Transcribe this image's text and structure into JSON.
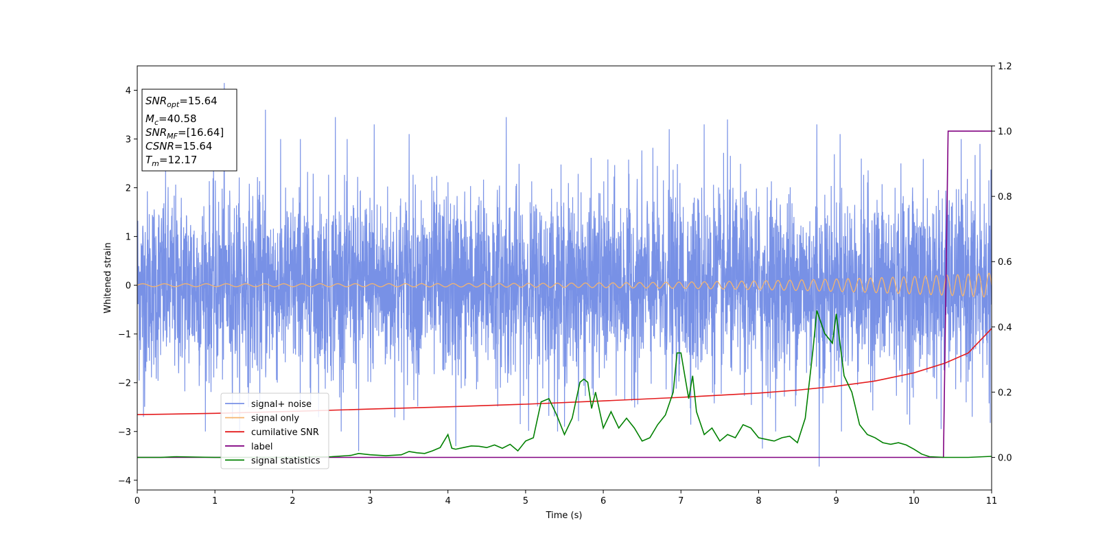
{
  "chart_data": {
    "type": "line",
    "xlabel": "Time (s)",
    "ylabel": "Whitened strain",
    "xlim": [
      0,
      11
    ],
    "ylim": [
      -4.2,
      4.5
    ],
    "y2lim": [
      -0.1,
      1.2
    ],
    "x_ticks": [
      "0",
      "1",
      "2",
      "3",
      "4",
      "5",
      "6",
      "7",
      "8",
      "9",
      "10",
      "11"
    ],
    "y_ticks": [
      "−4",
      "−3",
      "−2",
      "−1",
      "0",
      "1",
      "2",
      "3",
      "4"
    ],
    "y2_ticks": [
      "0.0",
      "0.2",
      "0.4",
      "0.6",
      "0.8",
      "1.0",
      "1.2"
    ],
    "grid": false,
    "legend_placement": "lower-left",
    "annotation": {
      "snr_opt": {
        "sym": "SNR",
        "sub": "opt",
        "val": "=15.64"
      },
      "mc": {
        "sym": "M",
        "sub": "c",
        "val": "=40.58"
      },
      "snr_mf": {
        "sym": "SNR",
        "sub": "MF",
        "val": "=[16.64]"
      },
      "csnr": {
        "sym": "CSNR",
        "sub": "",
        "val": "=15.64"
      },
      "tm": {
        "sym": "T",
        "sub": "m",
        "val": "=12.17"
      }
    },
    "series": [
      {
        "name": "signal+ noise",
        "axis": "left",
        "color": "#7891e6",
        "description": "noise-like band",
        "typical_range": [
          -1.6,
          1.6
        ],
        "peaks": [
          {
            "x": 1.12,
            "y": 4.15
          },
          {
            "x": 1.65,
            "y": 3.6
          },
          {
            "x": 2.55,
            "y": 3.45
          },
          {
            "x": 2.1,
            "y": 3.0
          },
          {
            "x": 3.05,
            "y": 3.3
          },
          {
            "x": 3.5,
            "y": 3.1
          },
          {
            "x": 4.75,
            "y": 3.45
          },
          {
            "x": 6.85,
            "y": 3.2
          },
          {
            "x": 7.3,
            "y": 3.3
          },
          {
            "x": 7.6,
            "y": 3.4
          },
          {
            "x": 8.75,
            "y": 3.3
          },
          {
            "x": 9.05,
            "y": 3.1
          },
          {
            "x": 10.85,
            "y": 2.9
          }
        ],
        "troughs": [
          {
            "x": 0.08,
            "y": -2.7
          },
          {
            "x": 2.85,
            "y": -3.4
          },
          {
            "x": 4.1,
            "y": -3.3
          },
          {
            "x": 5.5,
            "y": -2.9
          },
          {
            "x": 8.05,
            "y": -3.35
          },
          {
            "x": 8.78,
            "y": -3.72
          },
          {
            "x": 10.35,
            "y": -2.95
          },
          {
            "x": 10.75,
            "y": -2.7
          }
        ]
      },
      {
        "name": "signal only",
        "axis": "left",
        "color": "#f5b46e",
        "description": "chirp with amplitude growing toward the end",
        "start_amplitude": 0.03,
        "end_amplitude": 0.25
      },
      {
        "name": "cumilative SNR",
        "axis": "right",
        "color": "#e41a1c",
        "x": [
          0,
          1,
          2,
          3,
          4,
          5,
          6,
          7,
          8,
          8.5,
          9,
          9.5,
          10,
          10.4,
          10.7,
          11
        ],
        "values": [
          0.131,
          0.135,
          0.141,
          0.148,
          0.155,
          0.163,
          0.173,
          0.184,
          0.197,
          0.206,
          0.218,
          0.234,
          0.259,
          0.289,
          0.32,
          0.395
        ]
      },
      {
        "name": "label",
        "axis": "right",
        "color": "#800080",
        "x": [
          0,
          10.38,
          10.44,
          11
        ],
        "values": [
          0,
          0,
          1,
          1
        ]
      },
      {
        "name": "signal statistics",
        "axis": "right",
        "color": "#008000",
        "x": [
          0,
          0.3,
          0.5,
          1.0,
          2.0,
          2.5,
          2.75,
          2.85,
          3.0,
          3.2,
          3.4,
          3.5,
          3.6,
          3.7,
          3.8,
          3.9,
          4.0,
          4.05,
          4.1,
          4.2,
          4.3,
          4.4,
          4.5,
          4.6,
          4.7,
          4.8,
          4.9,
          5.0,
          5.1,
          5.2,
          5.3,
          5.4,
          5.5,
          5.6,
          5.7,
          5.75,
          5.8,
          5.85,
          5.9,
          6.0,
          6.1,
          6.2,
          6.3,
          6.4,
          6.5,
          6.6,
          6.7,
          6.8,
          6.9,
          6.95,
          7.0,
          7.05,
          7.1,
          7.15,
          7.2,
          7.3,
          7.4,
          7.5,
          7.6,
          7.7,
          7.8,
          7.9,
          8.0,
          8.1,
          8.2,
          8.3,
          8.4,
          8.5,
          8.6,
          8.7,
          8.75,
          8.85,
          8.95,
          9.0,
          9.1,
          9.2,
          9.3,
          9.4,
          9.5,
          9.6,
          9.7,
          9.8,
          9.9,
          10.0,
          10.1,
          10.2,
          10.4,
          10.7,
          11.0
        ],
        "values": [
          0.0,
          0.0,
          0.002,
          0.0,
          0.0,
          0.002,
          0.006,
          0.012,
          0.008,
          0.005,
          0.008,
          0.018,
          0.014,
          0.012,
          0.02,
          0.03,
          0.07,
          0.028,
          0.025,
          0.03,
          0.035,
          0.034,
          0.03,
          0.038,
          0.028,
          0.04,
          0.02,
          0.05,
          0.06,
          0.17,
          0.18,
          0.13,
          0.07,
          0.12,
          0.23,
          0.24,
          0.23,
          0.15,
          0.2,
          0.09,
          0.14,
          0.09,
          0.12,
          0.09,
          0.05,
          0.06,
          0.1,
          0.13,
          0.2,
          0.32,
          0.32,
          0.25,
          0.18,
          0.25,
          0.14,
          0.07,
          0.09,
          0.05,
          0.07,
          0.06,
          0.1,
          0.09,
          0.06,
          0.055,
          0.05,
          0.06,
          0.065,
          0.045,
          0.12,
          0.33,
          0.45,
          0.38,
          0.35,
          0.44,
          0.25,
          0.2,
          0.1,
          0.07,
          0.06,
          0.045,
          0.04,
          0.045,
          0.038,
          0.025,
          0.01,
          0.002,
          0.0,
          0.0,
          0.003
        ]
      }
    ]
  }
}
